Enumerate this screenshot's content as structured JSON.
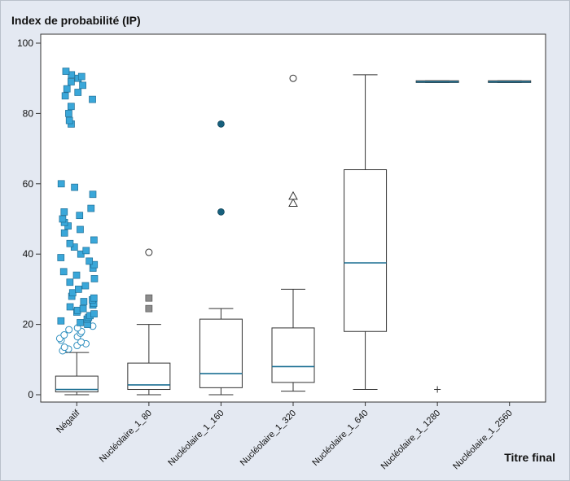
{
  "chart_data": {
    "type": "box",
    "ylabel": "Index de probabilité (IP)",
    "xlabel": "Titre final",
    "ylim": [
      0,
      100
    ],
    "yticks": [
      0,
      20,
      40,
      60,
      80,
      100
    ],
    "grid": false,
    "colors": {
      "background": "#e4e9f2",
      "plot": "#ffffff",
      "median": "#1a6e92",
      "square": "#3aa7d9",
      "dot": "#16607d",
      "grey": "#8c8c8c"
    },
    "categories": [
      "Négatif",
      "Nucléolaire_1_80",
      "Nucléolaire_1_160",
      "Nucléolaire_1_320",
      "Nucléolaire_1_640",
      "Nucléolaire_1_1280",
      "Nucléolaire_1_2560"
    ],
    "boxes": [
      {
        "whisker_low": 0,
        "q1": 0.8,
        "median": 1.5,
        "q3": 5.3,
        "whisker_high": 12
      },
      {
        "whisker_low": 0,
        "q1": 1.5,
        "median": 2.8,
        "q3": 9,
        "whisker_high": 20
      },
      {
        "whisker_low": 0,
        "q1": 2,
        "median": 6,
        "q3": 21.5,
        "whisker_high": 24.5
      },
      {
        "whisker_low": 1,
        "q1": 3.5,
        "median": 8,
        "q3": 19,
        "whisker_high": 30
      },
      {
        "whisker_low": 1.5,
        "q1": 18,
        "median": 37.5,
        "q3": 64,
        "whisker_high": 91
      },
      {
        "whisker_low": 88.8,
        "q1": 88.8,
        "median": 89,
        "q3": 89.3,
        "whisker_high": 89.3
      },
      {
        "whisker_low": 88.8,
        "q1": 88.8,
        "median": 89,
        "q3": 89.3,
        "whisker_high": 89.3
      }
    ],
    "outliers": [
      {
        "category": 0,
        "marker": "circle",
        "values": [
          12.5,
          13,
          13.5,
          14,
          14.5,
          15,
          15.5,
          16,
          16.5,
          17,
          17.5,
          18,
          18.5,
          19,
          19.5
        ]
      },
      {
        "category": 0,
        "marker": "square",
        "values": [
          20,
          20.5,
          21,
          21.5,
          22,
          22.5,
          23,
          23.5,
          24,
          24.5,
          25,
          25.5,
          26,
          26.5,
          27,
          27.5,
          28,
          29,
          30,
          31,
          32,
          33,
          34,
          35,
          36,
          37,
          38,
          39,
          40,
          41,
          42,
          43,
          44,
          46,
          47,
          48,
          49,
          50,
          51,
          52,
          53,
          57,
          59,
          60,
          77,
          78,
          80,
          82,
          84,
          85,
          86,
          87,
          88,
          89,
          90,
          90.5,
          91,
          92
        ]
      },
      {
        "category": 1,
        "marker": "circle",
        "values": [
          40.5
        ]
      },
      {
        "category": 1,
        "marker": "grey-square",
        "values": [
          24.5,
          27.5
        ]
      },
      {
        "category": 2,
        "marker": "dot",
        "values": [
          52,
          77
        ]
      },
      {
        "category": 3,
        "marker": "triangle",
        "values": [
          54.5,
          56.5
        ]
      },
      {
        "category": 3,
        "marker": "circle",
        "values": [
          90
        ]
      },
      {
        "category": 5,
        "marker": "plus",
        "values": [
          1.5
        ]
      }
    ]
  }
}
